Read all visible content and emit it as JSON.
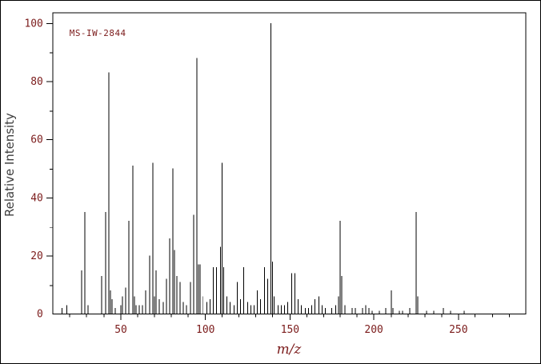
{
  "chart": {
    "annotation": "MS-IW-2844",
    "xlabel": "m/z",
    "ylabel": "Relative Intensity"
  },
  "colors": {
    "background": "#ffffff",
    "frame": "#000000",
    "peak": "#000000",
    "tick_label": "#7b1b1b",
    "axis_title": "#7b1b1b",
    "ylabel_color": "#3c3c3c"
  },
  "chart_data": {
    "type": "bar",
    "title": "MS-IW-2844",
    "xlabel": "m/z",
    "ylabel": "Relative Intensity",
    "xlim": [
      10,
      290
    ],
    "ylim": [
      0,
      104
    ],
    "grid": false,
    "x_major_ticks": [
      50,
      100,
      150,
      200,
      250
    ],
    "x_minor_tick_step": 10,
    "y_major_ticks": [
      0,
      20,
      40,
      60,
      80,
      100
    ],
    "y_minor_tick_step": 10,
    "peaks": [
      [
        15,
        2
      ],
      [
        18,
        3
      ],
      [
        27,
        15
      ],
      [
        29,
        35
      ],
      [
        31,
        3
      ],
      [
        39,
        13
      ],
      [
        41,
        35
      ],
      [
        43,
        83
      ],
      [
        44,
        8
      ],
      [
        45,
        5
      ],
      [
        47,
        2
      ],
      [
        50,
        3
      ],
      [
        51,
        6
      ],
      [
        53,
        9
      ],
      [
        55,
        32
      ],
      [
        57,
        51
      ],
      [
        58,
        6
      ],
      [
        59,
        3
      ],
      [
        61,
        3
      ],
      [
        63,
        3
      ],
      [
        65,
        8
      ],
      [
        67,
        20
      ],
      [
        69,
        52
      ],
      [
        70,
        6
      ],
      [
        71,
        15
      ],
      [
        73,
        5
      ],
      [
        75,
        4
      ],
      [
        77,
        12
      ],
      [
        79,
        26
      ],
      [
        81,
        50
      ],
      [
        82,
        22
      ],
      [
        83,
        13
      ],
      [
        85,
        11
      ],
      [
        87,
        4
      ],
      [
        89,
        3
      ],
      [
        91,
        11
      ],
      [
        93,
        34
      ],
      [
        95,
        88
      ],
      [
        96,
        17
      ],
      [
        97,
        17
      ],
      [
        99,
        6
      ],
      [
        101,
        4
      ],
      [
        103,
        5
      ],
      [
        105,
        16
      ],
      [
        107,
        16
      ],
      [
        109,
        23
      ],
      [
        110,
        52
      ],
      [
        111,
        16
      ],
      [
        113,
        6
      ],
      [
        115,
        4
      ],
      [
        117,
        3
      ],
      [
        119,
        11
      ],
      [
        121,
        5
      ],
      [
        123,
        16
      ],
      [
        125,
        4
      ],
      [
        127,
        3
      ],
      [
        129,
        3
      ],
      [
        131,
        8
      ],
      [
        133,
        5
      ],
      [
        135,
        16
      ],
      [
        137,
        12
      ],
      [
        139,
        100
      ],
      [
        140,
        18
      ],
      [
        141,
        6
      ],
      [
        143,
        3
      ],
      [
        145,
        3
      ],
      [
        147,
        3
      ],
      [
        149,
        4
      ],
      [
        151,
        14
      ],
      [
        153,
        14
      ],
      [
        155,
        5
      ],
      [
        157,
        3
      ],
      [
        159,
        2
      ],
      [
        161,
        2
      ],
      [
        163,
        3
      ],
      [
        165,
        5
      ],
      [
        167,
        6
      ],
      [
        169,
        3
      ],
      [
        171,
        2
      ],
      [
        175,
        2
      ],
      [
        177,
        3
      ],
      [
        179,
        6
      ],
      [
        180,
        32
      ],
      [
        181,
        13
      ],
      [
        183,
        3
      ],
      [
        187,
        2
      ],
      [
        189,
        2
      ],
      [
        193,
        2
      ],
      [
        195,
        3
      ],
      [
        197,
        2
      ],
      [
        199,
        1
      ],
      [
        203,
        1
      ],
      [
        207,
        2
      ],
      [
        210,
        8
      ],
      [
        211,
        2
      ],
      [
        215,
        1
      ],
      [
        217,
        1
      ],
      [
        221,
        2
      ],
      [
        225,
        35
      ],
      [
        226,
        6
      ],
      [
        231,
        1
      ],
      [
        235,
        1
      ],
      [
        241,
        2
      ],
      [
        245,
        1
      ],
      [
        253,
        1
      ]
    ]
  }
}
